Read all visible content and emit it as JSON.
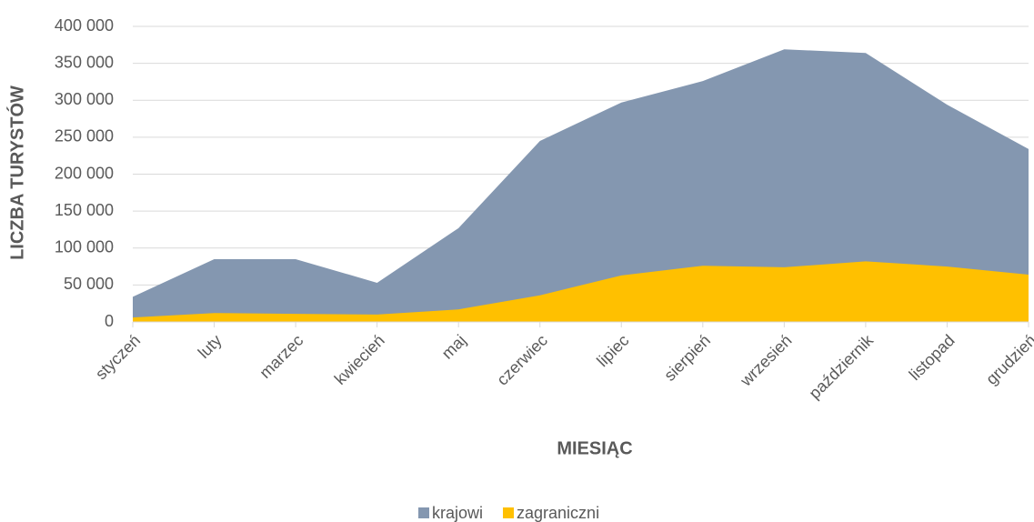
{
  "chart_data": {
    "type": "area",
    "x_label": "MIESIĄC",
    "y_label": "LICZBA TURYSTÓW",
    "categories": [
      "styczeń",
      "luty",
      "marzec",
      "kwiecień",
      "maj",
      "czerwiec",
      "lipiec",
      "sierpień",
      "wrzesień",
      "październik",
      "listopad",
      "grudzień"
    ],
    "series": [
      {
        "name": "krajowi",
        "color": "#8497b0",
        "values": [
          34000,
          85000,
          85000,
          53000,
          127000,
          245000,
          297000,
          326000,
          369000,
          364000,
          294000,
          234000
        ]
      },
      {
        "name": "zagraniczni",
        "color": "#ffc000",
        "values": [
          6000,
          12000,
          11000,
          10000,
          17000,
          36000,
          63000,
          76000,
          74000,
          82000,
          75000,
          64000
        ]
      }
    ],
    "ylim": [
      0,
      400000
    ],
    "yticks": [
      0,
      {
        "value": 50000,
        "label": "50 000"
      },
      {
        "value": 100000,
        "label": "100 000"
      },
      {
        "value": 150000,
        "label": "150 000"
      },
      {
        "value": 200000,
        "label": "200 000"
      },
      {
        "value": 250000,
        "label": "250 000"
      },
      {
        "value": 300000,
        "label": "300 000"
      },
      {
        "value": 350000,
        "label": "350 000"
      },
      {
        "value": 400000,
        "label": "400 000"
      }
    ],
    "grid": true,
    "legend": "bottom"
  }
}
